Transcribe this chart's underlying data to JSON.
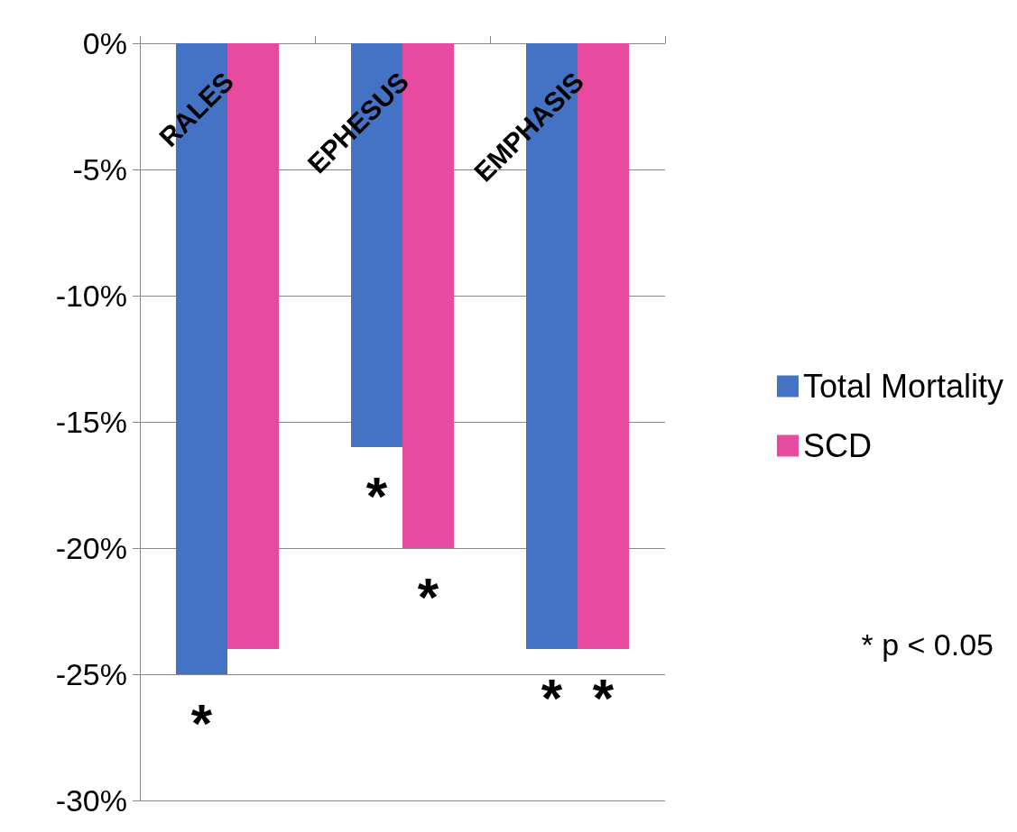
{
  "chart_data": {
    "type": "bar",
    "categories": [
      "RALES",
      "EPHESUS",
      "EMPHASIS"
    ],
    "series": [
      {
        "name": "Total Mortality",
        "color": "#4472c4",
        "values": [
          -25,
          -16,
          -24
        ]
      },
      {
        "name": "SCD",
        "color": "#e84aa0",
        "values": [
          -24,
          -20,
          -24
        ]
      }
    ],
    "ylim": [
      -30,
      0
    ],
    "yticks": [
      {
        "value": 0,
        "label": "0%"
      },
      {
        "value": -5,
        "label": "-5%"
      },
      {
        "value": -10,
        "label": "-10%"
      },
      {
        "value": -15,
        "label": "-15%"
      },
      {
        "value": -20,
        "label": "-20%"
      },
      {
        "value": -25,
        "label": "-25%"
      },
      {
        "value": -30,
        "label": "-30%"
      }
    ],
    "grid": "y",
    "legend": "right",
    "annotations": [
      {
        "text": "*",
        "x": "RALES",
        "y": -25
      },
      {
        "text": "*",
        "x": "EPHESUS",
        "y": -16
      },
      {
        "text": "*",
        "x": "EPHESUS",
        "y": -20
      },
      {
        "text": "*",
        "x": "EMPHASIS",
        "y": -24
      },
      {
        "text": "*",
        "x": "EMPHASIS",
        "y": -24
      },
      "* p < 0.05"
    ]
  }
}
